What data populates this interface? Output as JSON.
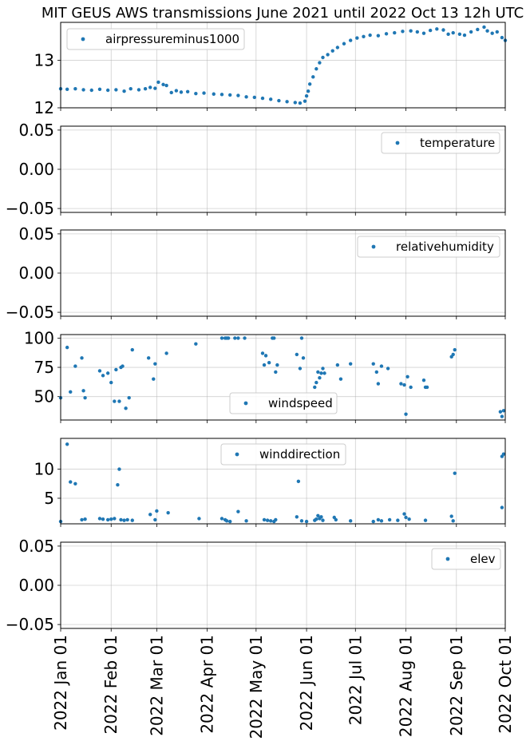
{
  "figure": {
    "title": "MIT GEUS AWS transmissions June 2021 until 2022 Oct 13 12h UTC"
  },
  "chart_data": [
    {
      "type": "scatter",
      "series_name": "airpressureminus1000",
      "x_range": [
        "2022-01-01",
        "2022-10-01"
      ],
      "ylim": [
        12.0,
        13.8
      ],
      "yticks": [
        12,
        13
      ],
      "ytick_labels": [
        "12",
        "13"
      ],
      "grid": true,
      "legend": "upper left",
      "color": "#1f77b4",
      "points": [
        [
          "2022-01-01",
          12.4
        ],
        [
          "2022-01-05",
          12.39
        ],
        [
          "2022-01-10",
          12.4
        ],
        [
          "2022-01-15",
          12.38
        ],
        [
          "2022-01-20",
          12.37
        ],
        [
          "2022-01-25",
          12.39
        ],
        [
          "2022-01-30",
          12.37
        ],
        [
          "2022-02-04",
          12.38
        ],
        [
          "2022-02-09",
          12.35
        ],
        [
          "2022-02-13",
          12.4
        ],
        [
          "2022-02-18",
          12.38
        ],
        [
          "2022-02-22",
          12.4
        ],
        [
          "2022-02-25",
          12.43
        ],
        [
          "2022-02-28",
          12.41
        ],
        [
          "2022-03-02",
          12.54
        ],
        [
          "2022-03-05",
          12.49
        ],
        [
          "2022-03-07",
          12.47
        ],
        [
          "2022-03-10",
          12.32
        ],
        [
          "2022-03-13",
          12.36
        ],
        [
          "2022-03-16",
          12.33
        ],
        [
          "2022-03-20",
          12.34
        ],
        [
          "2022-03-25",
          12.3
        ],
        [
          "2022-03-30",
          12.31
        ],
        [
          "2022-04-05",
          12.29
        ],
        [
          "2022-04-10",
          12.28
        ],
        [
          "2022-04-15",
          12.27
        ],
        [
          "2022-04-20",
          12.26
        ],
        [
          "2022-04-25",
          12.23
        ],
        [
          "2022-04-30",
          12.22
        ],
        [
          "2022-05-05",
          12.2
        ],
        [
          "2022-05-10",
          12.18
        ],
        [
          "2022-05-15",
          12.15
        ],
        [
          "2022-05-20",
          12.13
        ],
        [
          "2022-05-25",
          12.11
        ],
        [
          "2022-05-28",
          12.1
        ],
        [
          "2022-05-31",
          12.14
        ],
        [
          "2022-06-01",
          12.25
        ],
        [
          "2022-06-02",
          12.35
        ],
        [
          "2022-06-03",
          12.5
        ],
        [
          "2022-06-05",
          12.65
        ],
        [
          "2022-06-07",
          12.82
        ],
        [
          "2022-06-09",
          12.95
        ],
        [
          "2022-06-11",
          13.06
        ],
        [
          "2022-06-14",
          13.12
        ],
        [
          "2022-06-17",
          13.2
        ],
        [
          "2022-06-20",
          13.27
        ],
        [
          "2022-06-24",
          13.35
        ],
        [
          "2022-06-28",
          13.42
        ],
        [
          "2022-07-02",
          13.47
        ],
        [
          "2022-07-06",
          13.5
        ],
        [
          "2022-07-10",
          13.53
        ],
        [
          "2022-07-15",
          13.52
        ],
        [
          "2022-07-20",
          13.56
        ],
        [
          "2022-07-25",
          13.58
        ],
        [
          "2022-07-30",
          13.61
        ],
        [
          "2022-08-04",
          13.62
        ],
        [
          "2022-08-08",
          13.6
        ],
        [
          "2022-08-12",
          13.57
        ],
        [
          "2022-08-16",
          13.63
        ],
        [
          "2022-08-20",
          13.66
        ],
        [
          "2022-08-24",
          13.64
        ],
        [
          "2022-08-27",
          13.55
        ],
        [
          "2022-08-30",
          13.58
        ],
        [
          "2022-09-03",
          13.55
        ],
        [
          "2022-09-06",
          13.53
        ],
        [
          "2022-09-10",
          13.6
        ],
        [
          "2022-09-14",
          13.65
        ],
        [
          "2022-09-18",
          13.7
        ],
        [
          "2022-09-20",
          13.62
        ],
        [
          "2022-09-23",
          13.57
        ],
        [
          "2022-09-26",
          13.6
        ],
        [
          "2022-09-29",
          13.48
        ],
        [
          "2022-10-01",
          13.42
        ]
      ]
    },
    {
      "type": "scatter",
      "series_name": "temperature",
      "x_range": [
        "2022-01-01",
        "2022-10-01"
      ],
      "ylim": [
        -0.055,
        0.055
      ],
      "yticks": [
        -0.05,
        0.0,
        0.05
      ],
      "ytick_labels": [
        "−0.05",
        "0.00",
        "0.05"
      ],
      "grid": true,
      "legend": "upper right",
      "color": "#1f77b4",
      "points": []
    },
    {
      "type": "scatter",
      "series_name": "relativehumidity",
      "x_range": [
        "2022-01-01",
        "2022-10-01"
      ],
      "ylim": [
        -0.055,
        0.055
      ],
      "yticks": [
        -0.05,
        0.0,
        0.05
      ],
      "ytick_labels": [
        "−0.05",
        "0.00",
        "0.05"
      ],
      "grid": true,
      "legend": "upper right",
      "color": "#1f77b4",
      "points": []
    },
    {
      "type": "scatter",
      "series_name": "windspeed",
      "x_range": [
        "2022-01-01",
        "2022-10-01"
      ],
      "ylim": [
        30,
        103
      ],
      "yticks": [
        50,
        75,
        100
      ],
      "ytick_labels": [
        "50",
        "75",
        "100"
      ],
      "grid": true,
      "legend": "lower center",
      "color": "#1f77b4",
      "points": [
        [
          "2022-01-01",
          49
        ],
        [
          "2022-01-05",
          92
        ],
        [
          "2022-01-07",
          54
        ],
        [
          "2022-01-10",
          76
        ],
        [
          "2022-01-14",
          83
        ],
        [
          "2022-01-15",
          55
        ],
        [
          "2022-01-16",
          49
        ],
        [
          "2022-01-25",
          72
        ],
        [
          "2022-01-27",
          68
        ],
        [
          "2022-01-30",
          70
        ],
        [
          "2022-02-01",
          62
        ],
        [
          "2022-02-03",
          46
        ],
        [
          "2022-02-04",
          73
        ],
        [
          "2022-02-06",
          46
        ],
        [
          "2022-02-07",
          75
        ],
        [
          "2022-02-08",
          76
        ],
        [
          "2022-02-10",
          40
        ],
        [
          "2022-02-12",
          49
        ],
        [
          "2022-02-14",
          90
        ],
        [
          "2022-02-24",
          83
        ],
        [
          "2022-02-27",
          65
        ],
        [
          "2022-02-28",
          78
        ],
        [
          "2022-03-07",
          87
        ],
        [
          "2022-03-25",
          95
        ],
        [
          "2022-04-10",
          100
        ],
        [
          "2022-04-12",
          100
        ],
        [
          "2022-04-13",
          100
        ],
        [
          "2022-04-14",
          100
        ],
        [
          "2022-04-18",
          100
        ],
        [
          "2022-04-20",
          100
        ],
        [
          "2022-04-24",
          100
        ],
        [
          "2022-05-05",
          87
        ],
        [
          "2022-05-06",
          77
        ],
        [
          "2022-05-07",
          85
        ],
        [
          "2022-05-09",
          79
        ],
        [
          "2022-05-11",
          100
        ],
        [
          "2022-05-12",
          100
        ],
        [
          "2022-05-13",
          71
        ],
        [
          "2022-05-14",
          77
        ],
        [
          "2022-05-26",
          86
        ],
        [
          "2022-05-28",
          74
        ],
        [
          "2022-05-29",
          100
        ],
        [
          "2022-05-30",
          83
        ],
        [
          "2022-06-06",
          58
        ],
        [
          "2022-06-07",
          62
        ],
        [
          "2022-06-08",
          71
        ],
        [
          "2022-06-09",
          66
        ],
        [
          "2022-06-10",
          70
        ],
        [
          "2022-06-11",
          74
        ],
        [
          "2022-06-12",
          70
        ],
        [
          "2022-06-20",
          77
        ],
        [
          "2022-06-22",
          65
        ],
        [
          "2022-06-28",
          78
        ],
        [
          "2022-07-12",
          78
        ],
        [
          "2022-07-14",
          71
        ],
        [
          "2022-07-15",
          61
        ],
        [
          "2022-07-17",
          76
        ],
        [
          "2022-07-21",
          74
        ],
        [
          "2022-07-29",
          61
        ],
        [
          "2022-07-31",
          60
        ],
        [
          "2022-08-01",
          35
        ],
        [
          "2022-08-02",
          67
        ],
        [
          "2022-08-04",
          58
        ],
        [
          "2022-08-12",
          64
        ],
        [
          "2022-08-13",
          58
        ],
        [
          "2022-08-14",
          58
        ],
        [
          "2022-08-29",
          84
        ],
        [
          "2022-08-30",
          86
        ],
        [
          "2022-08-31",
          90
        ],
        [
          "2022-09-28",
          37
        ],
        [
          "2022-09-29",
          33
        ],
        [
          "2022-09-30",
          38
        ]
      ]
    },
    {
      "type": "scatter",
      "series_name": "winddirection",
      "x_range": [
        "2022-01-01",
        "2022-10-01"
      ],
      "ylim": [
        0.6,
        15.3
      ],
      "yticks": [
        5,
        10
      ],
      "ytick_labels": [
        "5",
        "10"
      ],
      "grid": true,
      "legend": "upper center",
      "color": "#1f77b4",
      "points": [
        [
          "2022-01-01",
          1.0
        ],
        [
          "2022-01-05",
          14.3
        ],
        [
          "2022-01-07",
          7.8
        ],
        [
          "2022-01-10",
          7.5
        ],
        [
          "2022-01-14",
          1.3
        ],
        [
          "2022-01-16",
          1.4
        ],
        [
          "2022-01-25",
          1.5
        ],
        [
          "2022-01-27",
          1.4
        ],
        [
          "2022-01-30",
          1.3
        ],
        [
          "2022-02-01",
          1.4
        ],
        [
          "2022-02-03",
          1.5
        ],
        [
          "2022-02-05",
          7.3
        ],
        [
          "2022-02-06",
          10.0
        ],
        [
          "2022-02-07",
          1.3
        ],
        [
          "2022-02-09",
          1.2
        ],
        [
          "2022-02-11",
          1.3
        ],
        [
          "2022-02-14",
          1.2
        ],
        [
          "2022-02-25",
          2.2
        ],
        [
          "2022-02-28",
          1.3
        ],
        [
          "2022-03-01",
          2.8
        ],
        [
          "2022-03-08",
          2.5
        ],
        [
          "2022-03-27",
          1.5
        ],
        [
          "2022-04-10",
          1.5
        ],
        [
          "2022-04-12",
          1.3
        ],
        [
          "2022-04-13",
          1.1
        ],
        [
          "2022-04-15",
          1.0
        ],
        [
          "2022-04-20",
          2.7
        ],
        [
          "2022-04-25",
          1.1
        ],
        [
          "2022-05-06",
          1.3
        ],
        [
          "2022-05-08",
          1.2
        ],
        [
          "2022-05-10",
          1.1
        ],
        [
          "2022-05-12",
          1.0
        ],
        [
          "2022-05-13",
          1.3
        ],
        [
          "2022-05-26",
          1.8
        ],
        [
          "2022-05-27",
          7.9
        ],
        [
          "2022-05-29",
          1.1
        ],
        [
          "2022-06-01",
          1.0
        ],
        [
          "2022-06-06",
          1.2
        ],
        [
          "2022-06-07",
          1.4
        ],
        [
          "2022-06-08",
          2.0
        ],
        [
          "2022-06-09",
          1.5
        ],
        [
          "2022-06-10",
          1.8
        ],
        [
          "2022-06-11",
          1.2
        ],
        [
          "2022-06-18",
          1.7
        ],
        [
          "2022-06-19",
          1.3
        ],
        [
          "2022-06-28",
          1.1
        ],
        [
          "2022-07-12",
          1.0
        ],
        [
          "2022-07-15",
          1.3
        ],
        [
          "2022-07-17",
          1.1
        ],
        [
          "2022-07-22",
          1.3
        ],
        [
          "2022-07-27",
          1.2
        ],
        [
          "2022-07-31",
          2.3
        ],
        [
          "2022-08-01",
          1.7
        ],
        [
          "2022-08-03",
          1.4
        ],
        [
          "2022-08-13",
          1.2
        ],
        [
          "2022-08-29",
          1.9
        ],
        [
          "2022-08-30",
          1.1
        ],
        [
          "2022-08-31",
          9.3
        ],
        [
          "2022-09-29",
          3.4
        ],
        [
          "2022-09-29",
          12.2
        ],
        [
          "2022-09-30",
          12.6
        ]
      ]
    },
    {
      "type": "scatter",
      "series_name": "elev",
      "x_range": [
        "2022-01-01",
        "2022-10-01"
      ],
      "ylim": [
        -0.055,
        0.055
      ],
      "yticks": [
        -0.05,
        0.0,
        0.05
      ],
      "ytick_labels": [
        "−0.05",
        "0.00",
        "0.05"
      ],
      "grid": true,
      "legend": "upper right",
      "color": "#1f77b4",
      "points": []
    }
  ],
  "x_axis": {
    "ticks": [
      "2022-01-01",
      "2022-02-01",
      "2022-03-01",
      "2022-04-01",
      "2022-05-01",
      "2022-06-01",
      "2022-07-01",
      "2022-08-01",
      "2022-09-01",
      "2022-10-01"
    ],
    "tick_labels": [
      "2022 Jan 01",
      "2022 Feb 01",
      "2022 Mar 01",
      "2022 Apr 01",
      "2022 May 01",
      "2022 Jun 01",
      "2022 Jul 01",
      "2022 Aug 01",
      "2022 Sep 01",
      "2022 Oct 01"
    ]
  }
}
